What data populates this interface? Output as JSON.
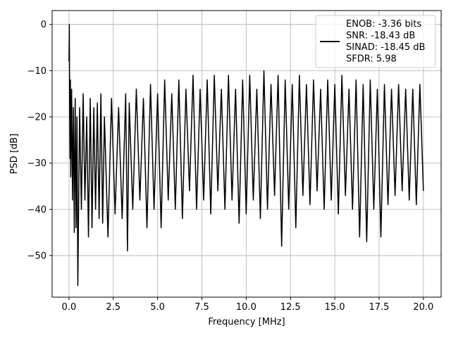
{
  "chart_data": {
    "type": "line",
    "title": "",
    "xlabel": "Frequency [MHz]",
    "ylabel": "PSD [dB]",
    "xlim": [
      -0.95,
      21.0
    ],
    "ylim": [
      -59.0,
      3.0
    ],
    "xticks": [
      0.0,
      2.5,
      5.0,
      7.5,
      10.0,
      12.5,
      15.0,
      17.5,
      20.0
    ],
    "xtick_labels": [
      "0.0",
      "2.5",
      "5.0",
      "7.5",
      "10.0",
      "12.5",
      "15.0",
      "17.5",
      "20.0"
    ],
    "yticks": [
      0,
      -10,
      -20,
      -30,
      -40,
      -50
    ],
    "ytick_labels": [
      "0",
      "−10",
      "−20",
      "−30",
      "−40",
      "−50"
    ],
    "grid": true,
    "legend_position": "top-right",
    "legend_lines": [
      "ENOB: -3.36 bits",
      "SNR: -18.43 dB",
      "SINAD: -18.45 dB",
      "SFDR: 5.98"
    ],
    "series": [
      {
        "name": "ENOB: -3.36 bits\nSNR: -18.43 dB\nSINAD: -18.45 dB\nSFDR: 5.98",
        "color": "#000000",
        "x": [
          0.0,
          0.02,
          0.04,
          0.06,
          0.08,
          0.1,
          0.15,
          0.2,
          0.25,
          0.3,
          0.35,
          0.4,
          0.45,
          0.5,
          0.6,
          0.7,
          0.8,
          0.9,
          1.0,
          1.1,
          1.2,
          1.3,
          1.4,
          1.5,
          1.6,
          1.7,
          1.8,
          1.9,
          2.0,
          2.2,
          2.4,
          2.6,
          2.8,
          3.0,
          3.2,
          3.3,
          3.4,
          3.6,
          3.8,
          4.0,
          4.2,
          4.4,
          4.6,
          4.8,
          5.0,
          5.2,
          5.4,
          5.6,
          5.8,
          6.0,
          6.2,
          6.4,
          6.6,
          6.8,
          7.0,
          7.2,
          7.4,
          7.6,
          7.8,
          8.0,
          8.2,
          8.4,
          8.6,
          8.8,
          9.0,
          9.2,
          9.4,
          9.6,
          9.8,
          10.0,
          10.2,
          10.4,
          10.6,
          10.8,
          11.0,
          11.2,
          11.4,
          11.6,
          11.8,
          12.0,
          12.2,
          12.4,
          12.6,
          12.8,
          13.0,
          13.2,
          13.4,
          13.6,
          13.8,
          14.0,
          14.2,
          14.4,
          14.6,
          14.8,
          15.0,
          15.2,
          15.4,
          15.6,
          15.8,
          16.0,
          16.2,
          16.4,
          16.6,
          16.8,
          17.0,
          17.2,
          17.4,
          17.6,
          17.8,
          18.0,
          18.2,
          18.4,
          18.6,
          18.8,
          19.0,
          19.2,
          19.4,
          19.6,
          19.8,
          20.0
        ],
        "y": [
          -8.0,
          0.0,
          -20.0,
          -29.0,
          -12.0,
          -33.0,
          -14.0,
          -38.0,
          -18.0,
          -45.0,
          -16.0,
          -44.0,
          -20.0,
          -56.5,
          -18.0,
          -40.0,
          -15.0,
          -38.0,
          -20.0,
          -46.0,
          -16.0,
          -44.0,
          -18.0,
          -40.0,
          -17.0,
          -42.0,
          -15.0,
          -43.0,
          -20.0,
          -46.0,
          -16.0,
          -41.0,
          -18.0,
          -42.0,
          -15.0,
          -49.0,
          -17.0,
          -40.0,
          -14.0,
          -38.0,
          -16.0,
          -44.0,
          -13.0,
          -40.0,
          -15.0,
          -44.0,
          -12.0,
          -38.0,
          -15.0,
          -40.0,
          -12.0,
          -42.0,
          -14.0,
          -36.0,
          -11.0,
          -40.0,
          -14.0,
          -38.0,
          -12.0,
          -41.0,
          -11.0,
          -36.0,
          -14.0,
          -40.0,
          -11.0,
          -38.0,
          -14.0,
          -43.0,
          -12.0,
          -41.0,
          -11.0,
          -38.0,
          -14.0,
          -42.0,
          -10.0,
          -40.0,
          -13.0,
          -37.0,
          -11.0,
          -48.0,
          -12.0,
          -40.0,
          -13.0,
          -44.0,
          -11.0,
          -37.0,
          -13.0,
          -39.0,
          -12.0,
          -36.0,
          -14.0,
          -40.0,
          -12.0,
          -38.0,
          -13.0,
          -41.0,
          -11.0,
          -37.0,
          -14.0,
          -40.0,
          -12.0,
          -46.0,
          -13.0,
          -47.0,
          -12.0,
          -40.0,
          -14.0,
          -46.0,
          -13.0,
          -39.0,
          -14.0,
          -37.0,
          -13.0,
          -36.0,
          -14.0,
          -38.0,
          -14.0,
          -39.0,
          -13.0,
          -36.0
        ]
      }
    ]
  }
}
